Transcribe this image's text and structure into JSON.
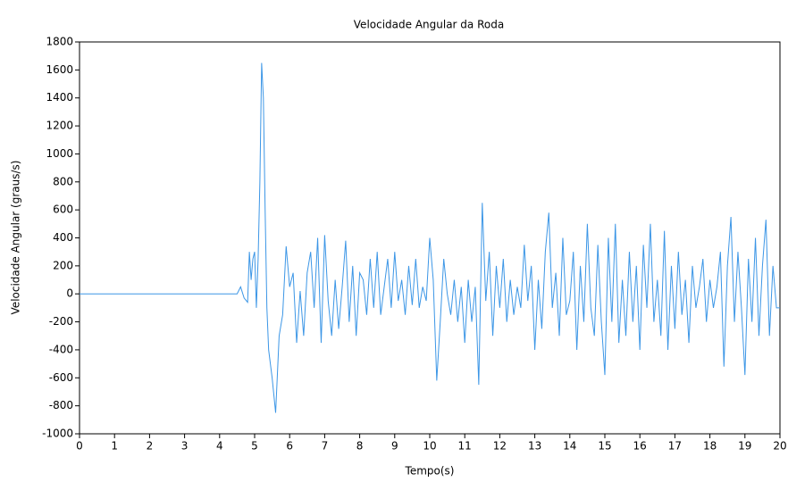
{
  "chart_data": {
    "type": "line",
    "title": "Velocidade Angular da Roda",
    "x_label": "Tempo(s)",
    "y_label": "Velocidade Angular (graus/s)",
    "xlim": [
      0,
      20
    ],
    "ylim": [
      -1000,
      1800
    ],
    "xticks": [
      0,
      1,
      2,
      3,
      4,
      5,
      6,
      7,
      8,
      9,
      10,
      11,
      12,
      13,
      14,
      15,
      16,
      17,
      18,
      19,
      20
    ],
    "yticks": [
      -1000,
      -800,
      -600,
      -400,
      -200,
      0,
      200,
      400,
      600,
      800,
      1000,
      1200,
      1400,
      1600,
      1800
    ],
    "grid": false,
    "series": [
      {
        "name": "Velocidade Angular",
        "color": "#3c96e6",
        "x": [
          0,
          4.5,
          4.6,
          4.7,
          4.8,
          4.85,
          4.9,
          4.95,
          5.0,
          5.05,
          5.1,
          5.15,
          5.2,
          5.25,
          5.3,
          5.35,
          5.4,
          5.5,
          5.6,
          5.7,
          5.8,
          5.9,
          6.0,
          6.1,
          6.2,
          6.3,
          6.4,
          6.5,
          6.6,
          6.7,
          6.8,
          6.9,
          7.0,
          7.1,
          7.2,
          7.3,
          7.4,
          7.5,
          7.6,
          7.7,
          7.8,
          7.9,
          8.0,
          8.1,
          8.2,
          8.3,
          8.4,
          8.5,
          8.6,
          8.7,
          8.8,
          8.9,
          9.0,
          9.1,
          9.2,
          9.3,
          9.4,
          9.5,
          9.6,
          9.7,
          9.8,
          9.9,
          10.0,
          10.1,
          10.2,
          10.3,
          10.4,
          10.5,
          10.6,
          10.7,
          10.8,
          10.9,
          11.0,
          11.1,
          11.2,
          11.3,
          11.4,
          11.5,
          11.6,
          11.7,
          11.8,
          11.9,
          12.0,
          12.1,
          12.2,
          12.3,
          12.4,
          12.5,
          12.6,
          12.7,
          12.8,
          12.9,
          13.0,
          13.1,
          13.2,
          13.3,
          13.4,
          13.5,
          13.6,
          13.7,
          13.8,
          13.9,
          14.0,
          14.1,
          14.2,
          14.3,
          14.4,
          14.5,
          14.6,
          14.7,
          14.8,
          14.9,
          15.0,
          15.1,
          15.2,
          15.3,
          15.4,
          15.5,
          15.6,
          15.7,
          15.8,
          15.9,
          16.0,
          16.1,
          16.2,
          16.3,
          16.4,
          16.5,
          16.6,
          16.7,
          16.8,
          16.9,
          17.0,
          17.1,
          17.2,
          17.3,
          17.4,
          17.5,
          17.6,
          17.7,
          17.8,
          17.9,
          18.0,
          18.1,
          18.2,
          18.3,
          18.4,
          18.5,
          18.6,
          18.7,
          18.8,
          18.9,
          19.0,
          19.1,
          19.2,
          19.3,
          19.4,
          19.5,
          19.6,
          19.7,
          19.8,
          19.9,
          20.0
        ],
        "values": [
          0,
          0,
          50,
          -30,
          -60,
          300,
          100,
          250,
          300,
          -100,
          250,
          800,
          1650,
          1400,
          600,
          -100,
          -400,
          -600,
          -850,
          -300,
          -150,
          340,
          50,
          150,
          -350,
          20,
          -300,
          150,
          300,
          -100,
          400,
          -350,
          420,
          -50,
          -300,
          100,
          -250,
          50,
          380,
          -200,
          200,
          -300,
          150,
          100,
          -150,
          250,
          -100,
          300,
          -150,
          50,
          250,
          -100,
          300,
          -50,
          100,
          -150,
          200,
          -80,
          250,
          -100,
          50,
          -50,
          400,
          100,
          -620,
          -200,
          250,
          0,
          -150,
          100,
          -200,
          50,
          -350,
          100,
          -200,
          50,
          -650,
          650,
          -50,
          300,
          -300,
          200,
          -100,
          250,
          -200,
          100,
          -150,
          50,
          -100,
          350,
          -50,
          200,
          -400,
          100,
          -250,
          300,
          580,
          -100,
          150,
          -300,
          400,
          -150,
          -50,
          300,
          -400,
          200,
          -200,
          500,
          -100,
          -300,
          350,
          -200,
          -580,
          400,
          -200,
          500,
          -350,
          100,
          -300,
          300,
          -200,
          200,
          -400,
          350,
          -100,
          500,
          -200,
          100,
          -300,
          450,
          -400,
          200,
          -250,
          300,
          -150,
          100,
          -350,
          200,
          -100,
          50,
          250,
          -200,
          100,
          -100,
          50,
          300,
          -520,
          200,
          550,
          -200,
          300,
          -100,
          -580,
          250,
          -200,
          400,
          -300,
          200,
          530,
          -300,
          200,
          -100,
          -100
        ]
      }
    ]
  }
}
